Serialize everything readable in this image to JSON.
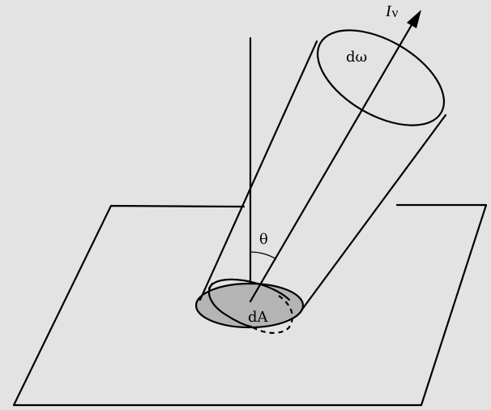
{
  "diagram": {
    "labels": {
      "intensity_symbol": "I",
      "intensity_subscript": "ν",
      "solid_angle": "dω",
      "angle": "θ",
      "area": "dA"
    },
    "colors": {
      "background": "#e3e3e3",
      "area_fill": "#b4b4b4",
      "line": "#000000"
    }
  }
}
